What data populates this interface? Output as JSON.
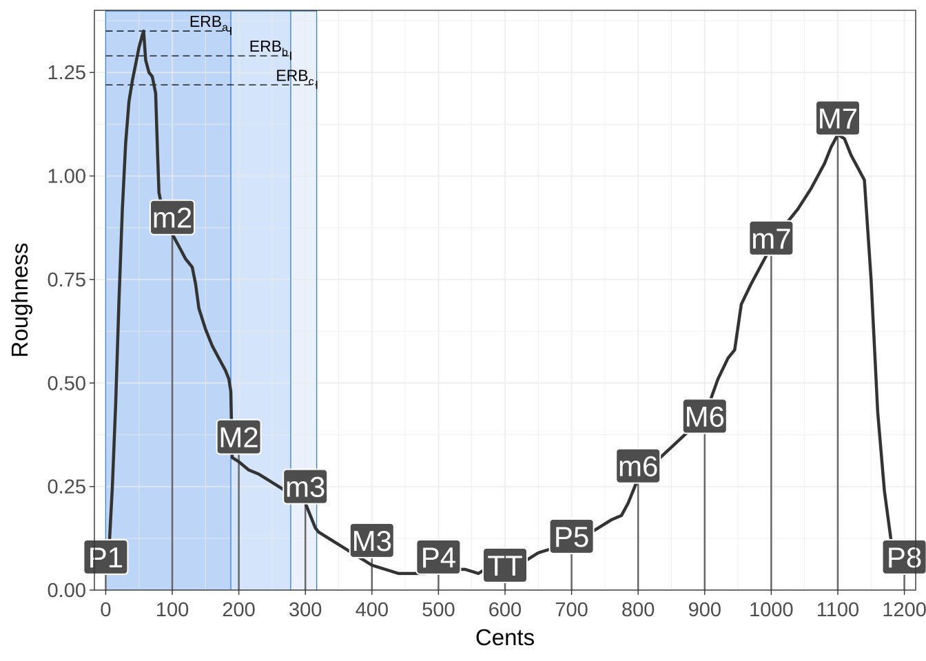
{
  "chart_data": {
    "type": "line",
    "xlabel": "Cents",
    "ylabel": "Roughness",
    "xlim": [
      -17,
      1217
    ],
    "ylim": [
      0,
      1.4
    ],
    "x_ticks": [
      0,
      100,
      200,
      300,
      400,
      500,
      600,
      700,
      800,
      900,
      1000,
      1100,
      1200
    ],
    "y_ticks": [
      0.0,
      0.25,
      0.5,
      0.75,
      1.0,
      1.25
    ],
    "y_tick_labels": [
      "0.00",
      "0.25",
      "0.50",
      "0.75",
      "1.00",
      "1.25"
    ],
    "grid": true,
    "colors": {
      "line": "#333333",
      "band_a": "#bdd6f7",
      "band_b": "#d4e4fa",
      "band_c": "#eaf1fc",
      "band_edge": "#3b7dd8",
      "label_bg": "#4d4d4d",
      "label_text": "#ffffff",
      "grid": "#ebebeb"
    },
    "erb_bands": [
      {
        "base": "ERB",
        "sub": "a",
        "x_start": 0,
        "x_end": 188,
        "y": 1.35
      },
      {
        "base": "ERB",
        "sub": "b",
        "x_start": 0,
        "x_end": 278,
        "y": 1.29
      },
      {
        "base": "ERB",
        "sub": "c",
        "x_start": 0,
        "x_end": 317,
        "y": 1.22
      }
    ],
    "intervals": [
      {
        "label": "P1",
        "x": 0,
        "y": 0.08
      },
      {
        "label": "m2",
        "x": 100,
        "y": 0.9
      },
      {
        "label": "M2",
        "x": 200,
        "y": 0.37
      },
      {
        "label": "m3",
        "x": 300,
        "y": 0.25
      },
      {
        "label": "M3",
        "x": 400,
        "y": 0.12
      },
      {
        "label": "P4",
        "x": 500,
        "y": 0.08
      },
      {
        "label": "TT",
        "x": 600,
        "y": 0.06
      },
      {
        "label": "P5",
        "x": 700,
        "y": 0.13
      },
      {
        "label": "m6",
        "x": 800,
        "y": 0.3
      },
      {
        "label": "M6",
        "x": 900,
        "y": 0.42
      },
      {
        "label": "m7",
        "x": 1000,
        "y": 0.85
      },
      {
        "label": "M7",
        "x": 1100,
        "y": 1.14
      },
      {
        "label": "P8",
        "x": 1200,
        "y": 0.08
      }
    ],
    "series": [
      {
        "x": [
          0,
          5,
          10,
          15,
          20,
          25,
          30,
          35,
          40,
          45,
          50,
          55,
          57,
          60,
          65,
          70,
          75,
          78,
          80,
          85,
          90,
          95,
          100,
          110,
          120,
          130,
          135,
          140,
          150,
          160,
          170,
          180,
          185,
          188,
          190,
          200,
          215,
          230,
          250,
          270,
          290,
          300,
          305,
          310,
          315,
          320,
          330,
          340,
          360,
          380,
          400,
          420,
          440,
          460,
          480,
          500,
          520,
          540,
          560,
          570,
          580,
          590,
          600,
          610,
          620,
          630,
          650,
          670,
          700,
          730,
          760,
          775,
          785,
          800,
          820,
          840,
          860,
          880,
          900,
          920,
          935,
          945,
          955,
          970,
          990,
          1000,
          1020,
          1040,
          1060,
          1080,
          1090,
          1100,
          1110,
          1120,
          1130,
          1140,
          1150,
          1160,
          1170,
          1180,
          1190,
          1200
        ],
        "y": [
          0.05,
          0.1,
          0.25,
          0.45,
          0.7,
          0.92,
          1.08,
          1.18,
          1.23,
          1.27,
          1.31,
          1.34,
          1.35,
          1.28,
          1.25,
          1.24,
          1.2,
          1.05,
          0.96,
          0.92,
          0.89,
          0.87,
          0.86,
          0.83,
          0.8,
          0.78,
          0.74,
          0.68,
          0.63,
          0.59,
          0.56,
          0.53,
          0.51,
          0.48,
          0.32,
          0.31,
          0.29,
          0.28,
          0.26,
          0.24,
          0.22,
          0.21,
          0.19,
          0.17,
          0.15,
          0.14,
          0.13,
          0.12,
          0.1,
          0.08,
          0.06,
          0.05,
          0.04,
          0.04,
          0.04,
          0.05,
          0.05,
          0.05,
          0.04,
          0.05,
          0.04,
          0.05,
          0.05,
          0.06,
          0.06,
          0.07,
          0.09,
          0.1,
          0.12,
          0.14,
          0.17,
          0.18,
          0.21,
          0.27,
          0.3,
          0.33,
          0.36,
          0.39,
          0.42,
          0.51,
          0.56,
          0.58,
          0.69,
          0.74,
          0.8,
          0.83,
          0.88,
          0.92,
          0.97,
          1.03,
          1.07,
          1.1,
          1.09,
          1.05,
          1.02,
          0.99,
          0.75,
          0.43,
          0.24,
          0.12,
          0.07,
          0.06
        ]
      }
    ]
  }
}
